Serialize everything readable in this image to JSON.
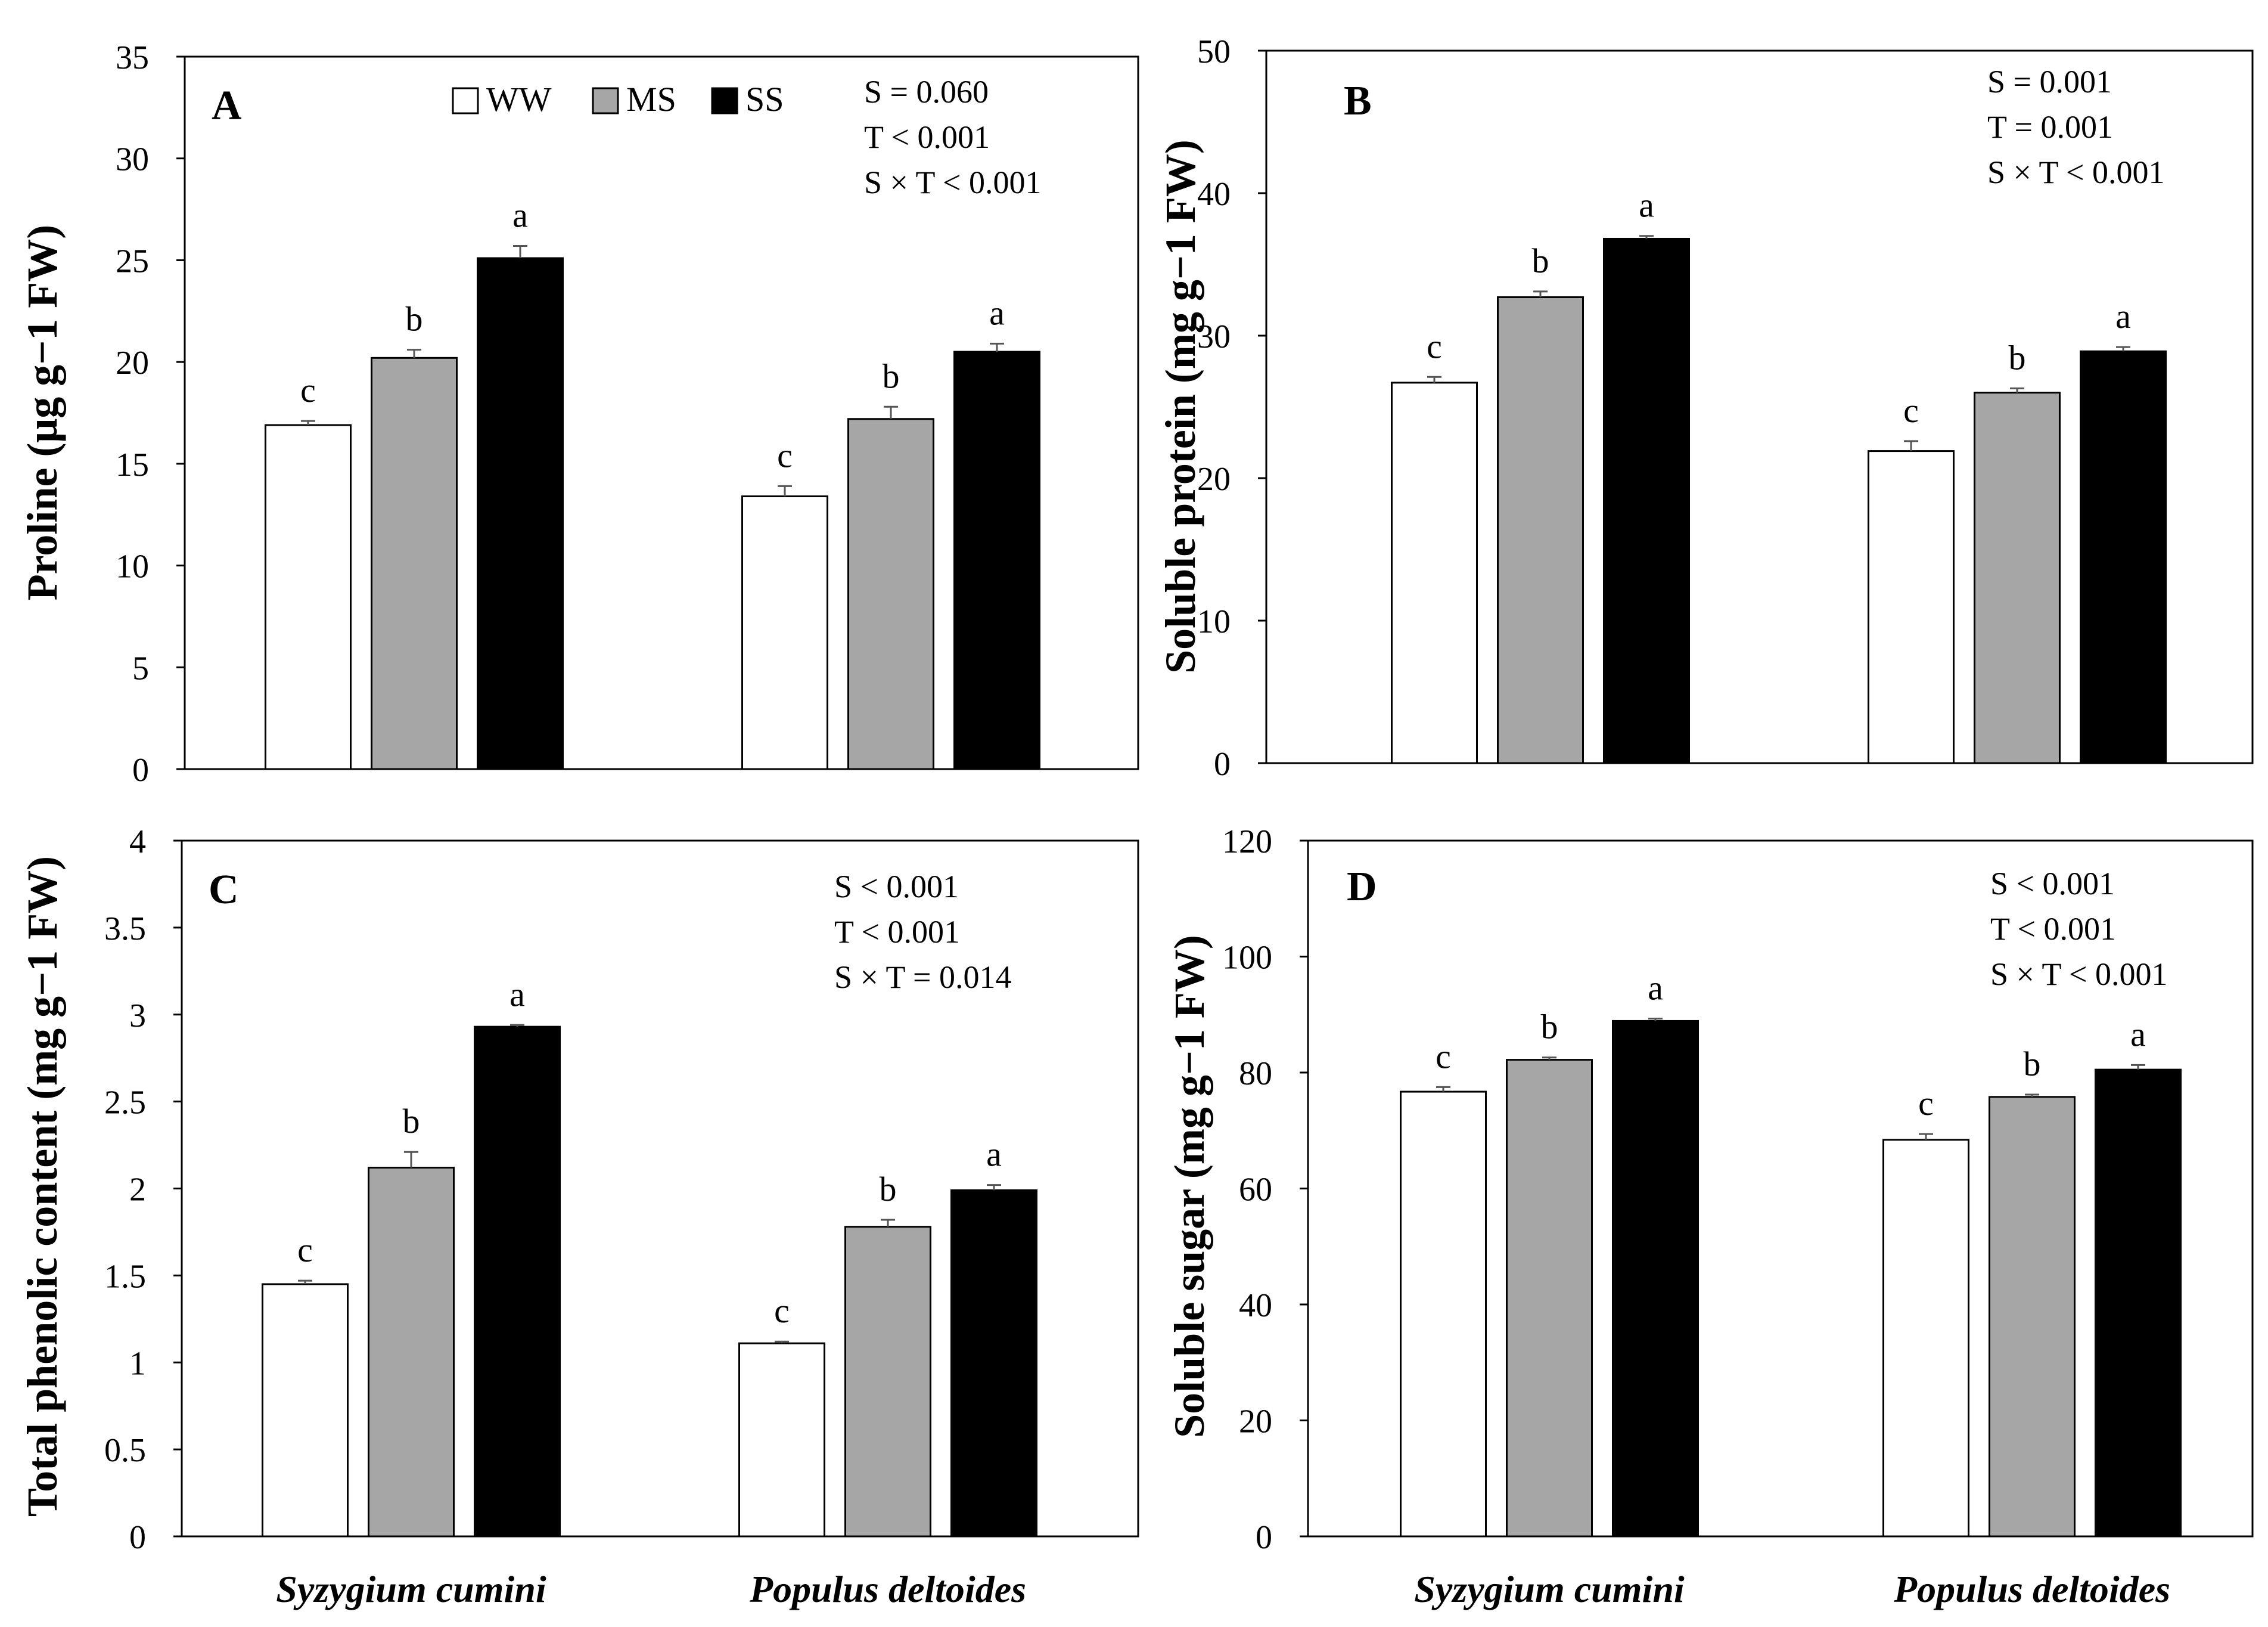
{
  "legend": {
    "items": [
      {
        "label": "WW",
        "color": "#ffffff"
      },
      {
        "label": "MS",
        "color": "#a6a6a6"
      },
      {
        "label": "SS",
        "color": "#000000"
      }
    ]
  },
  "chart_data": [
    {
      "panel": "A",
      "type": "bar",
      "ylabel": "Proline (μg g−1 FW)",
      "ylim": [
        0,
        35
      ],
      "yticks": [
        0,
        5,
        10,
        15,
        20,
        25,
        30,
        35
      ],
      "categories": [
        "Syzygium cumini",
        "Populus deltoides"
      ],
      "series": [
        {
          "name": "WW",
          "values": [
            16.9,
            13.4
          ],
          "errors": [
            0.2,
            0.5
          ],
          "letters": [
            "c",
            "c"
          ]
        },
        {
          "name": "MS",
          "values": [
            20.2,
            17.2
          ],
          "errors": [
            0.4,
            0.6
          ],
          "letters": [
            "b",
            "b"
          ]
        },
        {
          "name": "SS",
          "values": [
            25.1,
            20.5
          ],
          "errors": [
            0.6,
            0.4
          ],
          "letters": [
            "a",
            "a"
          ]
        }
      ],
      "stats": [
        "S = 0.060",
        "T < 0.001",
        "S × T < 0.001"
      ]
    },
    {
      "panel": "B",
      "type": "bar",
      "ylabel": "Soluble protein (mg g−1 FW)",
      "ylim": [
        0,
        50
      ],
      "yticks": [
        0,
        10,
        20,
        30,
        40,
        50
      ],
      "categories": [
        "Syzygium cumini",
        "Populus deltoides"
      ],
      "series": [
        {
          "name": "WW",
          "values": [
            26.7,
            21.9
          ],
          "errors": [
            0.4,
            0.7
          ],
          "letters": [
            "c",
            "c"
          ]
        },
        {
          "name": "MS",
          "values": [
            32.7,
            26.0
          ],
          "errors": [
            0.4,
            0.3
          ],
          "letters": [
            "b",
            "b"
          ]
        },
        {
          "name": "SS",
          "values": [
            36.8,
            28.9
          ],
          "errors": [
            0.2,
            0.3
          ],
          "letters": [
            "a",
            "a"
          ]
        }
      ],
      "stats": [
        "S = 0.001",
        "T = 0.001",
        "S × T < 0.001"
      ]
    },
    {
      "panel": "C",
      "type": "bar",
      "ylabel": "Total phenolic content (mg g−1 FW)",
      "ylim": [
        0,
        4
      ],
      "yticks": [
        0,
        0.5,
        1,
        1.5,
        2,
        2.5,
        3,
        3.5,
        4
      ],
      "categories": [
        "Syzygium cumini",
        "Populus deltoides"
      ],
      "series": [
        {
          "name": "WW",
          "values": [
            1.45,
            1.11
          ],
          "errors": [
            0.02,
            0.01
          ],
          "letters": [
            "c",
            "c"
          ]
        },
        {
          "name": "MS",
          "values": [
            2.12,
            1.78
          ],
          "errors": [
            0.09,
            0.04
          ],
          "letters": [
            "b",
            "b"
          ]
        },
        {
          "name": "SS",
          "values": [
            2.93,
            1.99
          ],
          "errors": [
            0.01,
            0.03
          ],
          "letters": [
            "a",
            "a"
          ]
        }
      ],
      "stats": [
        "S < 0.001",
        "T < 0.001",
        "S × T = 0.014"
      ]
    },
    {
      "panel": "D",
      "type": "bar",
      "ylabel": "Soluble sugar (mg g−1 FW)",
      "ylim": [
        0,
        120
      ],
      "yticks": [
        0,
        20,
        40,
        60,
        80,
        100,
        120
      ],
      "categories": [
        "Syzygium cumini",
        "Populus deltoides"
      ],
      "series": [
        {
          "name": "WW",
          "values": [
            76.7,
            68.4
          ],
          "errors": [
            0.8,
            1.0
          ],
          "letters": [
            "c",
            "c"
          ]
        },
        {
          "name": "MS",
          "values": [
            82.2,
            75.8
          ],
          "errors": [
            0.4,
            0.4
          ],
          "letters": [
            "b",
            "b"
          ]
        },
        {
          "name": "SS",
          "values": [
            88.9,
            80.5
          ],
          "errors": [
            0.4,
            0.8
          ],
          "letters": [
            "a",
            "a"
          ]
        }
      ],
      "stats": [
        "S < 0.001",
        "T < 0.001",
        "S × T < 0.001"
      ]
    }
  ]
}
